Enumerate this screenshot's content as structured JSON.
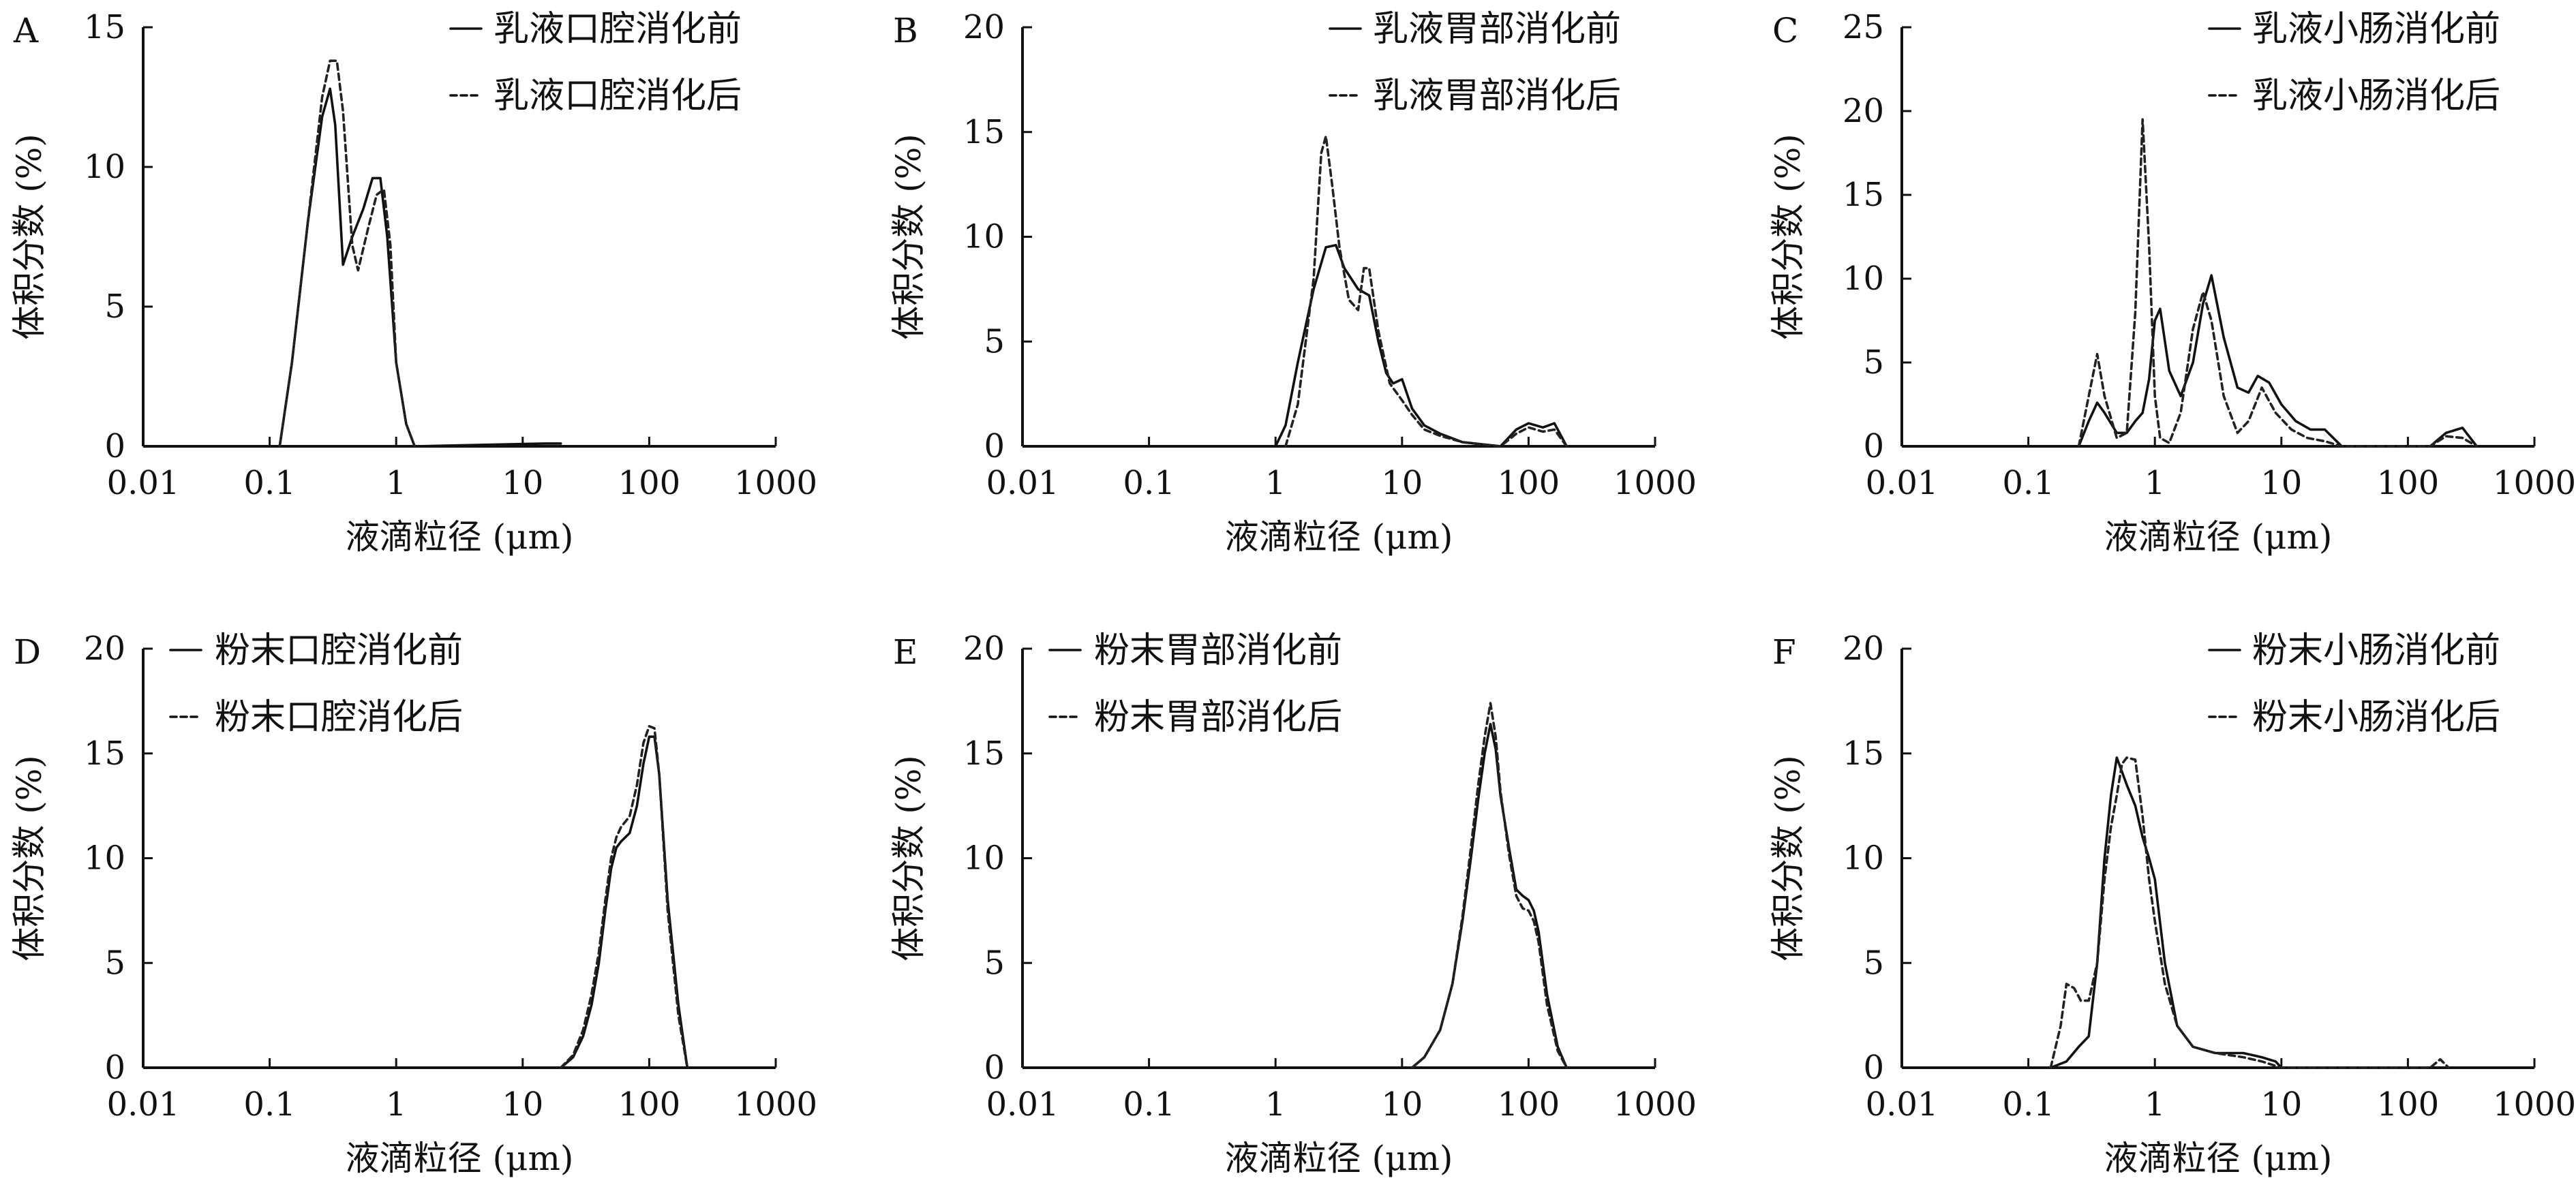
{
  "chart_data": [
    {
      "type": "line",
      "panel": "A",
      "xlabel": "液滴粒径 (μm)",
      "ylabel": "体积分数 (%)",
      "x_scale": "log",
      "xlim": [
        0.01,
        1000
      ],
      "ylim": [
        0,
        15
      ],
      "x_ticks": [
        "0.01",
        "0.1",
        "1",
        "10",
        "100",
        "1000"
      ],
      "y_ticks": [
        "0",
        "5",
        "10",
        "15"
      ],
      "legend_position": "top-right",
      "series": [
        {
          "name": "乳液口腔消化前",
          "style": "solid",
          "x": [
            0.12,
            0.15,
            0.2,
            0.26,
            0.3,
            0.33,
            0.38,
            0.45,
            0.55,
            0.65,
            0.75,
            0.85,
            1.0,
            1.2,
            1.4,
            15,
            20
          ],
          "y": [
            0,
            3,
            8,
            11.8,
            12.8,
            11.5,
            6.5,
            7.5,
            8.5,
            9.6,
            9.6,
            7.5,
            3,
            0.8,
            0,
            0.1,
            0.1
          ]
        },
        {
          "name": "乳液口腔消化后",
          "style": "dashed",
          "x": [
            0.12,
            0.15,
            0.2,
            0.26,
            0.3,
            0.34,
            0.38,
            0.45,
            0.5,
            0.6,
            0.7,
            0.8,
            0.9,
            1.0,
            1.2,
            1.4
          ],
          "y": [
            0,
            3,
            8,
            12.5,
            13.8,
            13.8,
            12,
            7.2,
            6.3,
            7.8,
            9,
            9.2,
            7.2,
            3,
            0.8,
            0
          ]
        }
      ]
    },
    {
      "type": "line",
      "panel": "B",
      "xlabel": "液滴粒径 (μm)",
      "ylabel": "体积分数 (%)",
      "x_scale": "log",
      "xlim": [
        0.01,
        1000
      ],
      "ylim": [
        0,
        20
      ],
      "x_ticks": [
        "0.01",
        "0.1",
        "1",
        "10",
        "100",
        "1000"
      ],
      "y_ticks": [
        "0",
        "5",
        "10",
        "15",
        "20"
      ],
      "legend_position": "top-right",
      "series": [
        {
          "name": "乳液胃部消化前",
          "style": "solid",
          "x": [
            1.0,
            1.2,
            1.5,
            2.0,
            2.5,
            3.0,
            3.5,
            4.5,
            5.5,
            6.5,
            7.5,
            8.5,
            10,
            12,
            15,
            20,
            30,
            60,
            80,
            100,
            130,
            160,
            200
          ],
          "y": [
            0,
            1,
            4,
            7.5,
            9.5,
            9.6,
            8.5,
            7.5,
            7.2,
            5,
            3.5,
            3,
            3.2,
            1.8,
            1,
            0.6,
            0.2,
            0,
            0.8,
            1.1,
            0.9,
            1.1,
            0
          ]
        },
        {
          "name": "乳液胃部消化后",
          "style": "dashed",
          "x": [
            1.2,
            1.5,
            2.0,
            2.3,
            2.5,
            2.8,
            3.2,
            3.8,
            4.5,
            5.0,
            5.5,
            6.5,
            8,
            10,
            12,
            15,
            20,
            30,
            60,
            80,
            100,
            130,
            160,
            200
          ],
          "y": [
            0,
            2,
            8,
            14,
            14.8,
            12.5,
            9.5,
            7,
            6.5,
            8.5,
            8.5,
            5.5,
            3,
            2.2,
            1.5,
            0.8,
            0.5,
            0.2,
            0,
            0.6,
            0.9,
            0.7,
            0.8,
            0
          ]
        }
      ]
    },
    {
      "type": "line",
      "panel": "C",
      "xlabel": "液滴粒径 (μm)",
      "ylabel": "体积分数 (%)",
      "x_scale": "log",
      "xlim": [
        0.01,
        1000
      ],
      "ylim": [
        0,
        25
      ],
      "x_ticks": [
        "0.01",
        "0.1",
        "1",
        "10",
        "100",
        "1000"
      ],
      "y_ticks": [
        "0",
        "5",
        "10",
        "15",
        "20",
        "25"
      ],
      "legend_position": "top-right",
      "series": [
        {
          "name": "乳液小肠消化前",
          "style": "solid",
          "x": [
            0.25,
            0.3,
            0.35,
            0.4,
            0.5,
            0.6,
            0.7,
            0.8,
            0.9,
            1.0,
            1.1,
            1.3,
            1.6,
            2.0,
            2.4,
            2.8,
            3.5,
            4.5,
            5.5,
            6.5,
            8,
            10,
            13,
            17,
            22,
            30,
            150,
            200,
            270,
            350
          ],
          "y": [
            0,
            1.5,
            2.6,
            2,
            0.8,
            0.8,
            1.5,
            2,
            4,
            7.5,
            8.2,
            4.5,
            3,
            5,
            8.5,
            10.2,
            6.5,
            3.5,
            3.2,
            4.2,
            3.8,
            2.5,
            1.5,
            1,
            1,
            0,
            0,
            0.8,
            1.1,
            0
          ]
        },
        {
          "name": "乳液小肠消化后",
          "style": "dashed",
          "x": [
            0.25,
            0.3,
            0.35,
            0.4,
            0.5,
            0.6,
            0.7,
            0.8,
            0.9,
            1.0,
            1.1,
            1.3,
            1.6,
            2.0,
            2.4,
            2.8,
            3.5,
            4.5,
            5.5,
            7,
            9,
            12,
            16,
            22,
            30,
            150,
            200,
            270,
            350
          ],
          "y": [
            0,
            3,
            5.5,
            3,
            0.5,
            0.8,
            8,
            19.5,
            12,
            3,
            0.5,
            0.2,
            2,
            7,
            9.2,
            7.5,
            3,
            0.8,
            1.5,
            3.5,
            2,
            1,
            0.5,
            0.3,
            0,
            0,
            0.6,
            0.5,
            0
          ]
        }
      ]
    },
    {
      "type": "line",
      "panel": "D",
      "xlabel": "液滴粒径 (μm)",
      "ylabel": "体积分数 (%)",
      "x_scale": "log",
      "xlim": [
        0.01,
        1000
      ],
      "ylim": [
        0,
        20
      ],
      "x_ticks": [
        "0.01",
        "0.1",
        "1",
        "10",
        "100",
        "1000"
      ],
      "y_ticks": [
        "0",
        "5",
        "10",
        "15",
        "20"
      ],
      "legend_position": "top-left",
      "series": [
        {
          "name": "粉末口腔消化前",
          "style": "solid",
          "x": [
            20,
            25,
            30,
            35,
            40,
            45,
            50,
            55,
            60,
            70,
            80,
            90,
            100,
            110,
            120,
            140,
            170,
            200
          ],
          "y": [
            0,
            0.5,
            1.5,
            3,
            5,
            7.5,
            9.5,
            10.5,
            10.8,
            11.2,
            12.5,
            14.5,
            15.8,
            15.8,
            14,
            8,
            3,
            0
          ]
        },
        {
          "name": "粉末口腔消化后",
          "style": "dashed",
          "x": [
            20,
            25,
            30,
            35,
            40,
            45,
            50,
            55,
            60,
            70,
            80,
            90,
            100,
            110,
            120,
            140,
            170,
            200
          ],
          "y": [
            0,
            0.6,
            1.8,
            3.5,
            5.5,
            8,
            10,
            11,
            11.5,
            12,
            13.5,
            15.5,
            16.3,
            16.2,
            14,
            7.5,
            2.5,
            0
          ]
        }
      ]
    },
    {
      "type": "line",
      "panel": "E",
      "xlabel": "液滴粒径 (μm)",
      "ylabel": "体积分数 (%)",
      "x_scale": "log",
      "xlim": [
        0.01,
        1000
      ],
      "ylim": [
        0,
        20
      ],
      "x_ticks": [
        "0.01",
        "0.1",
        "1",
        "10",
        "100",
        "1000"
      ],
      "y_ticks": [
        "0",
        "5",
        "10",
        "15",
        "20"
      ],
      "legend_position": "top-left",
      "series": [
        {
          "name": "粉末胃部消化前",
          "style": "solid",
          "x": [
            12,
            15,
            20,
            25,
            30,
            35,
            40,
            45,
            50,
            55,
            60,
            70,
            80,
            90,
            100,
            110,
            120,
            140,
            170,
            200
          ],
          "y": [
            0,
            0.5,
            1.8,
            4,
            7,
            10,
            12.8,
            15,
            16.4,
            15.2,
            13,
            10.5,
            8.5,
            8.2,
            8,
            7.5,
            6.5,
            3.5,
            1,
            0
          ]
        },
        {
          "name": "粉末胃部消化后",
          "style": "dashed",
          "x": [
            12,
            15,
            20,
            25,
            30,
            35,
            40,
            45,
            50,
            55,
            60,
            70,
            80,
            90,
            100,
            110,
            120,
            140,
            170,
            200
          ],
          "y": [
            0,
            0.5,
            1.8,
            4,
            7.2,
            10.5,
            13.5,
            15.8,
            17.4,
            15.8,
            13.2,
            10.2,
            8.2,
            7.6,
            7.5,
            7,
            6,
            3,
            0.8,
            0
          ]
        }
      ]
    },
    {
      "type": "line",
      "panel": "F",
      "xlabel": "液滴粒径 (μm)",
      "ylabel": "体积分数 (%)",
      "x_scale": "log",
      "xlim": [
        0.01,
        1000
      ],
      "ylim": [
        0,
        20
      ],
      "x_ticks": [
        "0.01",
        "0.1",
        "1",
        "10",
        "100",
        "1000"
      ],
      "y_ticks": [
        "0",
        "5",
        "10",
        "15",
        "20"
      ],
      "legend_position": "top-right",
      "series": [
        {
          "name": "粉末小肠消化前",
          "style": "solid",
          "x": [
            0.15,
            0.2,
            0.25,
            0.3,
            0.35,
            0.4,
            0.45,
            0.5,
            0.6,
            0.7,
            0.8,
            0.9,
            1.0,
            1.2,
            1.5,
            2,
            3,
            5,
            7,
            9,
            10
          ],
          "y": [
            0,
            0.3,
            1,
            1.5,
            5,
            10,
            13,
            14.8,
            13.5,
            12.5,
            11,
            10,
            9,
            5,
            2,
            1,
            0.7,
            0.7,
            0.5,
            0.3,
            0
          ]
        },
        {
          "name": "粉末小肠消化后",
          "style": "dashed",
          "x": [
            0.15,
            0.18,
            0.2,
            0.23,
            0.26,
            0.3,
            0.35,
            0.4,
            0.45,
            0.5,
            0.55,
            0.6,
            0.7,
            0.8,
            0.9,
            1.0,
            1.2,
            1.5,
            2,
            3,
            5,
            7,
            10,
            150,
            180,
            210
          ],
          "y": [
            0,
            2,
            4,
            3.8,
            3.2,
            3.2,
            5,
            9,
            11.5,
            13,
            14.5,
            14.8,
            14.7,
            12,
            9,
            7,
            4,
            2,
            1,
            0.7,
            0.5,
            0.3,
            0,
            0,
            0.4,
            0
          ]
        }
      ]
    }
  ]
}
